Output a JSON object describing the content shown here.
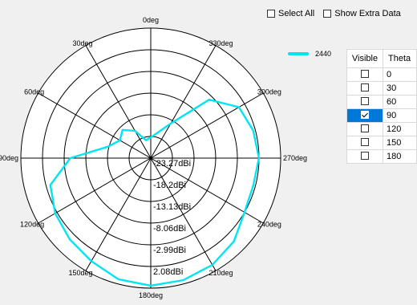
{
  "controls": {
    "select_all_label": "Select All",
    "show_extra_label": "Show Extra Data"
  },
  "legend": {
    "label": "2440",
    "color": "#00e5f0"
  },
  "table": {
    "col_visible": "Visible",
    "col_theta": "Theta",
    "rows": [
      {
        "theta": "0",
        "visible": false,
        "selected": false
      },
      {
        "theta": "30",
        "visible": false,
        "selected": false
      },
      {
        "theta": "60",
        "visible": false,
        "selected": false
      },
      {
        "theta": "90",
        "visible": true,
        "selected": true
      },
      {
        "theta": "120",
        "visible": false,
        "selected": false
      },
      {
        "theta": "150",
        "visible": false,
        "selected": false
      },
      {
        "theta": "180",
        "visible": false,
        "selected": false
      }
    ]
  },
  "chart_data": {
    "type": "polar-line",
    "angle_tick_labels": [
      "0deg",
      "330deg",
      "300deg",
      "270deg",
      "240deg",
      "210deg",
      "180deg",
      "150deg",
      "120deg",
      "90deg",
      "60deg",
      "30deg"
    ],
    "angle_direction": "clockwise from top: 0, 330, 300, 270 ...",
    "radial_tick_labels": [
      "-23.27dBi",
      "-18.2dBi",
      "-13.13dBi",
      "-8.06dBi",
      "-2.99dBi",
      "2.08dBi"
    ],
    "radial_range_dbi": [
      -28.34,
      2.08
    ],
    "series": [
      {
        "name": "2440",
        "color": "#00e5f0",
        "points": [
          {
            "angle": 0,
            "dbi": -23.5
          },
          {
            "angle": 330,
            "dbi": -19
          },
          {
            "angle": 315,
            "dbi": -9
          },
          {
            "angle": 300,
            "dbi": -4.5
          },
          {
            "angle": 285,
            "dbi": -3.5
          },
          {
            "angle": 270,
            "dbi": -3
          },
          {
            "angle": 255,
            "dbi": -3.5
          },
          {
            "angle": 240,
            "dbi": -3
          },
          {
            "angle": 225,
            "dbi": -0.8
          },
          {
            "angle": 210,
            "dbi": 0.5
          },
          {
            "angle": 195,
            "dbi": 1.2
          },
          {
            "angle": 180,
            "dbi": 1.5
          },
          {
            "angle": 165,
            "dbi": 1.0
          },
          {
            "angle": 150,
            "dbi": -0.5
          },
          {
            "angle": 135,
            "dbi": -1.5
          },
          {
            "angle": 120,
            "dbi": -2.5
          },
          {
            "angle": 105,
            "dbi": -4
          },
          {
            "angle": 90,
            "dbi": -9.5
          },
          {
            "angle": 75,
            "dbi": -18
          },
          {
            "angle": 60,
            "dbi": -20
          },
          {
            "angle": 45,
            "dbi": -19
          },
          {
            "angle": 30,
            "dbi": -21
          },
          {
            "angle": 15,
            "dbi": -24
          }
        ]
      }
    ]
  }
}
